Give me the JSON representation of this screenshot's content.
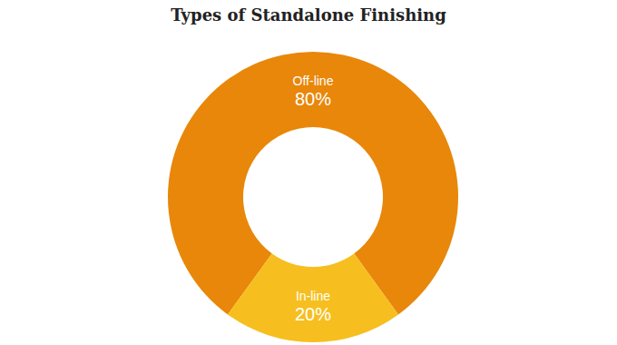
{
  "chart_data": {
    "type": "pie",
    "title": "Types of Standalone Finishing",
    "categories": [
      "Off-line",
      "In-line"
    ],
    "values": [
      80,
      20
    ],
    "value_labels": [
      "80%",
      "20%"
    ],
    "colors": [
      "#e8870a",
      "#f6bf1f"
    ],
    "data_labels": true
  }
}
